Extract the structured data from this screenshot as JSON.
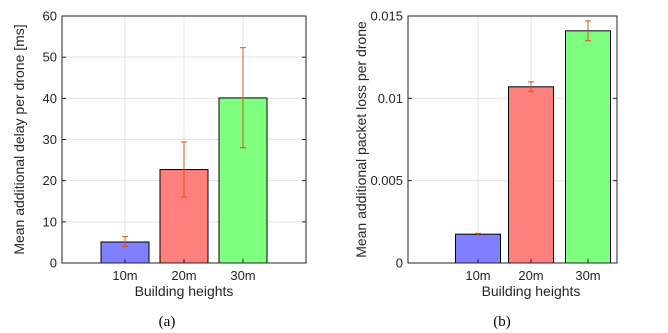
{
  "chart_data": [
    {
      "type": "bar",
      "panel_label": "(a)",
      "categories": [
        "10m",
        "20m",
        "30m"
      ],
      "values": [
        5.1,
        22.7,
        40.1
      ],
      "error_low": [
        4.0,
        16.0,
        28.0
      ],
      "error_high": [
        6.4,
        29.4,
        52.3
      ],
      "colors": [
        "#7f7fff",
        "#ff7f7f",
        "#7fff7f"
      ],
      "xlabel": "Building heights",
      "ylabel": "Mean additional delay per drone [ms]",
      "ylim": [
        0,
        60
      ],
      "yticks": [
        0,
        10,
        20,
        30,
        40,
        50,
        60
      ],
      "ytick_labels": [
        "0",
        "10",
        "20",
        "30",
        "40",
        "50",
        "60"
      ],
      "grid": true,
      "error_color": "#d95319"
    },
    {
      "type": "bar",
      "panel_label": "(b)",
      "categories": [
        "10m",
        "20m",
        "30m"
      ],
      "values": [
        0.00175,
        0.0107,
        0.0141
      ],
      "error_low": [
        0.0017,
        0.0104,
        0.0135
      ],
      "error_high": [
        0.0018,
        0.011,
        0.0147
      ],
      "colors": [
        "#7f7fff",
        "#ff7f7f",
        "#7fff7f"
      ],
      "xlabel": "Building heights",
      "ylabel": "Mean additional packet loss per drone",
      "ylim": [
        0,
        0.015
      ],
      "yticks": [
        0,
        0.005,
        0.01,
        0.015
      ],
      "ytick_labels": [
        "0",
        "0.005",
        "0.01",
        "0.015"
      ],
      "grid": true,
      "error_color": "#d95319"
    }
  ]
}
